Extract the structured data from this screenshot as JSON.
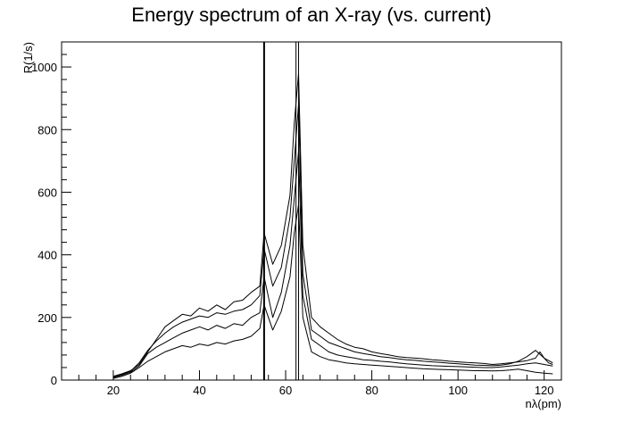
{
  "chart_data": {
    "type": "line",
    "title": "Energy spectrum of an X-ray (vs. current)",
    "xlabel": "nλ(pm)",
    "ylabel": "R(1/s)",
    "xlim": [
      8,
      124
    ],
    "ylim": [
      0,
      1080
    ],
    "xticks": [
      20,
      40,
      60,
      80,
      100,
      120
    ],
    "yticks": [
      0,
      200,
      400,
      600,
      800,
      1000
    ],
    "grid": false,
    "legend": "none",
    "line_color": "#000000",
    "vertical_lines": [
      55,
      62.4,
      63.0
    ],
    "series": [
      {
        "x": [
          20,
          22,
          24,
          26,
          28,
          30,
          32,
          34,
          36,
          38,
          40,
          42,
          44,
          46,
          48,
          50,
          52,
          54,
          55,
          57,
          59,
          61,
          62,
          63,
          64,
          66,
          68,
          70,
          72,
          74,
          76,
          78,
          80,
          82,
          84,
          86,
          88,
          90,
          92,
          94,
          96,
          98,
          100,
          102,
          104,
          106,
          108,
          110,
          112,
          114,
          116,
          118,
          119,
          120,
          121,
          122
        ],
        "values": [
          12,
          20,
          30,
          50,
          90,
          130,
          170,
          190,
          210,
          205,
          230,
          220,
          240,
          225,
          250,
          255,
          280,
          300,
          470,
          370,
          430,
          590,
          820,
          980,
          430,
          200,
          170,
          150,
          130,
          115,
          105,
          100,
          90,
          85,
          80,
          75,
          72,
          70,
          68,
          65,
          63,
          60,
          58,
          56,
          55,
          53,
          50,
          52,
          55,
          58,
          62,
          70,
          90,
          70,
          55,
          50
        ]
      },
      {
        "x": [
          20,
          22,
          24,
          26,
          28,
          30,
          32,
          34,
          36,
          38,
          40,
          42,
          44,
          46,
          48,
          50,
          52,
          54,
          55,
          57,
          59,
          61,
          62,
          63,
          64,
          66,
          68,
          70,
          72,
          74,
          76,
          78,
          80,
          82,
          84,
          86,
          88,
          90,
          92,
          94,
          96,
          98,
          100,
          102,
          104,
          106,
          108,
          110,
          112,
          114,
          116,
          118,
          120,
          122
        ],
        "values": [
          10,
          18,
          28,
          55,
          95,
          125,
          150,
          170,
          185,
          195,
          205,
          200,
          215,
          210,
          220,
          225,
          240,
          270,
          420,
          300,
          360,
          520,
          700,
          880,
          340,
          160,
          140,
          120,
          110,
          100,
          90,
          85,
          80,
          75,
          72,
          68,
          65,
          63,
          60,
          58,
          56,
          54,
          52,
          50,
          48,
          47,
          46,
          48,
          52,
          60,
          75,
          95,
          70,
          55
        ]
      },
      {
        "x": [
          20,
          22,
          24,
          26,
          28,
          30,
          32,
          34,
          36,
          38,
          40,
          42,
          44,
          46,
          48,
          50,
          52,
          54,
          55,
          57,
          59,
          61,
          62,
          63,
          64,
          66,
          68,
          70,
          72,
          74,
          76,
          78,
          80,
          82,
          84,
          86,
          88,
          90,
          92,
          94,
          96,
          98,
          100,
          102,
          104,
          106,
          108,
          110,
          112,
          114,
          116,
          118,
          120,
          122
        ],
        "values": [
          8,
          15,
          25,
          45,
          85,
          105,
          120,
          135,
          150,
          160,
          170,
          160,
          175,
          165,
          180,
          175,
          200,
          215,
          330,
          200,
          280,
          430,
          580,
          730,
          270,
          130,
          110,
          90,
          80,
          75,
          70,
          65,
          63,
          60,
          58,
          55,
          52,
          50,
          48,
          46,
          45,
          44,
          43,
          42,
          41,
          40,
          40,
          42,
          45,
          48,
          52,
          55,
          50,
          45
        ]
      },
      {
        "x": [
          20,
          22,
          24,
          26,
          28,
          30,
          32,
          34,
          36,
          38,
          40,
          42,
          44,
          46,
          48,
          50,
          52,
          54,
          55,
          57,
          59,
          61,
          62,
          63,
          64,
          66,
          68,
          70,
          72,
          74,
          76,
          78,
          80,
          82,
          84,
          86,
          88,
          90,
          92,
          94,
          96,
          98,
          100,
          102,
          104,
          106,
          108,
          110,
          112,
          114,
          116,
          118,
          120,
          122
        ],
        "values": [
          5,
          12,
          22,
          40,
          60,
          75,
          90,
          100,
          110,
          105,
          115,
          110,
          120,
          115,
          125,
          130,
          140,
          165,
          240,
          160,
          220,
          330,
          470,
          560,
          200,
          90,
          75,
          65,
          60,
          55,
          52,
          50,
          48,
          46,
          44,
          42,
          40,
          38,
          36,
          35,
          34,
          33,
          32,
          31,
          30,
          30,
          29,
          30,
          32,
          35,
          30,
          25,
          22,
          20
        ]
      }
    ]
  }
}
